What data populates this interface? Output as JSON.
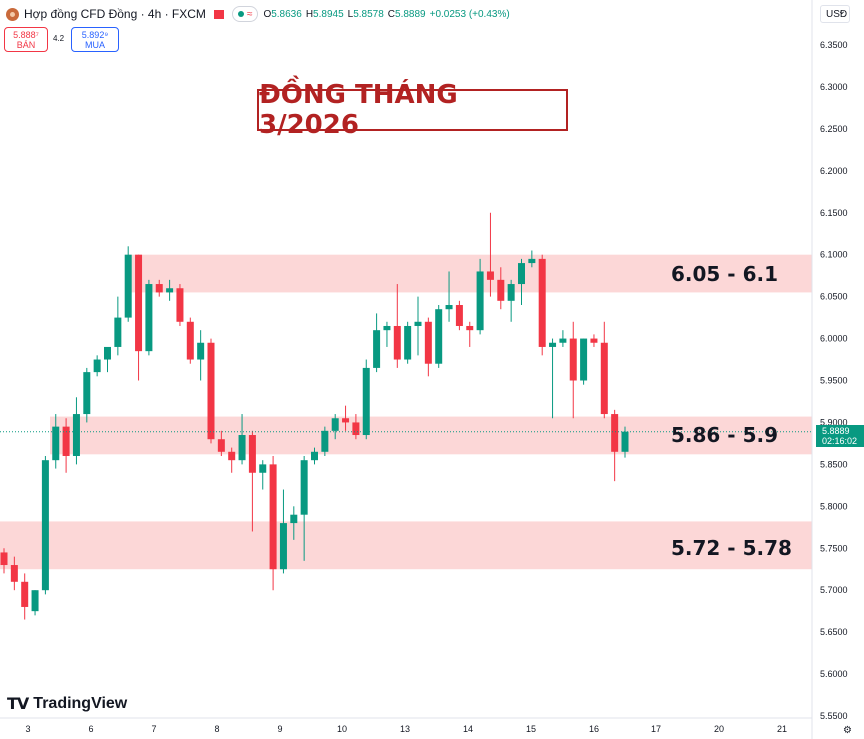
{
  "header": {
    "title": "Hợp đồng CFD Đồng · 4h · FXCM",
    "ohlc": {
      "o_label": "O",
      "o": "5.8636",
      "h_label": "H",
      "h": "5.8945",
      "l_label": "L",
      "l": "5.8578",
      "c_label": "C",
      "c": "5.8889",
      "change": "+0.0253 (+0.43%)"
    },
    "sell_price": "5.888⁷",
    "sell_label": "BÁN",
    "spread": "4.2",
    "buy_price": "5.892⁹",
    "buy_label": "MUA",
    "currency": "USD"
  },
  "annotation": {
    "banner": "ĐỒNG THÁNG 3/2026",
    "zones": [
      {
        "low": 6.055,
        "high": 6.1,
        "label": "6.05 - 6.1"
      },
      {
        "low": 5.862,
        "high": 5.907,
        "label": "5.86 - 5.9"
      },
      {
        "low": 5.725,
        "high": 5.782,
        "label": "5.72 - 5.78"
      }
    ],
    "zone_color": "#fcd7d7"
  },
  "last_price": {
    "value": "5.8889",
    "countdown": "02:16:02"
  },
  "brand": "TradingView",
  "colors": {
    "up": "#089981",
    "down": "#f23645",
    "accent_red": "#b22222"
  },
  "chart_data": {
    "type": "candlestick",
    "y_axis": {
      "min": 5.55,
      "max": 6.35,
      "ticks": [
        "5.5500",
        "5.6000",
        "5.6500",
        "5.7000",
        "5.7500",
        "5.8000",
        "5.8500",
        "5.9000",
        "5.9500",
        "6.0000",
        "6.0500",
        "6.1000",
        "6.1500",
        "6.2000",
        "6.2500",
        "6.3000",
        "6.3500"
      ]
    },
    "x_ticks": [
      "3",
      "6",
      "7",
      "8",
      "9",
      "10",
      "13",
      "14",
      "15",
      "16",
      "17",
      "20",
      "21"
    ],
    "candles": [
      [
        5.745,
        5.75,
        5.72,
        5.73
      ],
      [
        5.73,
        5.74,
        5.7,
        5.71
      ],
      [
        5.71,
        5.72,
        5.665,
        5.68
      ],
      [
        5.675,
        5.7,
        5.67,
        5.7
      ],
      [
        5.7,
        5.86,
        5.695,
        5.855
      ],
      [
        5.855,
        5.91,
        5.845,
        5.895
      ],
      [
        5.895,
        5.905,
        5.84,
        5.86
      ],
      [
        5.86,
        5.93,
        5.85,
        5.91
      ],
      [
        5.91,
        5.965,
        5.9,
        5.96
      ],
      [
        5.96,
        5.98,
        5.955,
        5.975
      ],
      [
        5.975,
        5.99,
        5.96,
        5.99
      ],
      [
        5.99,
        6.05,
        5.98,
        6.025
      ],
      [
        6.025,
        6.11,
        6.02,
        6.1
      ],
      [
        6.1,
        6.1,
        5.95,
        5.985
      ],
      [
        5.985,
        6.07,
        5.98,
        6.065
      ],
      [
        6.065,
        6.07,
        6.05,
        6.055
      ],
      [
        6.055,
        6.07,
        6.045,
        6.06
      ],
      [
        6.06,
        6.065,
        6.015,
        6.02
      ],
      [
        6.02,
        6.025,
        5.97,
        5.975
      ],
      [
        5.975,
        6.01,
        5.95,
        5.995
      ],
      [
        5.995,
        6.0,
        5.875,
        5.88
      ],
      [
        5.88,
        5.89,
        5.86,
        5.865
      ],
      [
        5.865,
        5.87,
        5.84,
        5.855
      ],
      [
        5.855,
        5.91,
        5.85,
        5.885
      ],
      [
        5.885,
        5.89,
        5.77,
        5.84
      ],
      [
        5.84,
        5.855,
        5.82,
        5.85
      ],
      [
        5.85,
        5.86,
        5.7,
        5.725
      ],
      [
        5.725,
        5.82,
        5.72,
        5.78
      ],
      [
        5.78,
        5.8,
        5.76,
        5.79
      ],
      [
        5.79,
        5.86,
        5.735,
        5.855
      ],
      [
        5.855,
        5.87,
        5.85,
        5.865
      ],
      [
        5.865,
        5.895,
        5.86,
        5.89
      ],
      [
        5.89,
        5.91,
        5.88,
        5.905
      ],
      [
        5.905,
        5.92,
        5.89,
        5.9
      ],
      [
        5.9,
        5.91,
        5.88,
        5.885
      ],
      [
        5.885,
        5.975,
        5.88,
        5.965
      ],
      [
        5.965,
        6.03,
        5.96,
        6.01
      ],
      [
        6.01,
        6.02,
        5.99,
        6.015
      ],
      [
        6.015,
        6.065,
        5.965,
        5.975
      ],
      [
        5.975,
        6.02,
        5.97,
        6.015
      ],
      [
        6.015,
        6.05,
        5.98,
        6.02
      ],
      [
        6.02,
        6.025,
        5.955,
        5.97
      ],
      [
        5.97,
        6.04,
        5.965,
        6.035
      ],
      [
        6.035,
        6.08,
        6.02,
        6.04
      ],
      [
        6.04,
        6.045,
        6.01,
        6.015
      ],
      [
        6.015,
        6.02,
        5.99,
        6.01
      ],
      [
        6.01,
        6.095,
        6.005,
        6.08
      ],
      [
        6.08,
        6.15,
        6.05,
        6.07
      ],
      [
        6.07,
        6.085,
        6.035,
        6.045
      ],
      [
        6.045,
        6.07,
        6.02,
        6.065
      ],
      [
        6.065,
        6.095,
        6.04,
        6.09
      ],
      [
        6.09,
        6.105,
        6.085,
        6.095
      ],
      [
        6.095,
        6.1,
        5.98,
        5.99
      ],
      [
        5.99,
        6.0,
        5.905,
        5.995
      ],
      [
        5.995,
        6.01,
        5.99,
        6.0
      ],
      [
        6.0,
        6.02,
        5.905,
        5.95
      ],
      [
        5.95,
        6.0,
        5.945,
        6.0
      ],
      [
        6.0,
        6.005,
        5.99,
        5.995
      ],
      [
        5.995,
        6.02,
        5.905,
        5.91
      ],
      [
        5.91,
        5.915,
        5.83,
        5.865
      ],
      [
        5.865,
        5.895,
        5.858,
        5.889
      ]
    ]
  }
}
